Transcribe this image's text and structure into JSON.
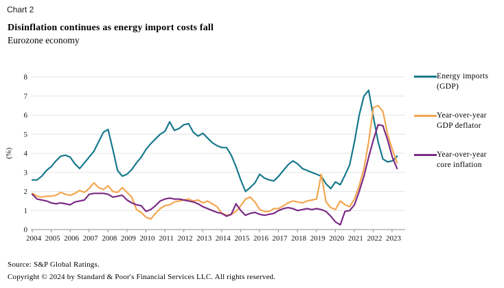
{
  "window": {
    "corner_label": "Chart 2"
  },
  "header": {
    "title": "Disinflation continues as energy import costs fall",
    "subtitle": "Eurozone economy"
  },
  "footer": {
    "source": "Source: S&P Global Ratings.",
    "copyright": "Copyright © 2024 by Standard & Poor's Financial Services LLC. All rights reserved."
  },
  "colors": {
    "energy_imports": "#16788C",
    "gdp_deflator": "#F4A64F",
    "core_inflation": "#7B2A85",
    "gridline": "#E4E4E4",
    "axis": "#8C8C8C"
  },
  "chart_data": {
    "type": "line",
    "title": "Disinflation continues as energy import costs fall",
    "subtitle": "Eurozone economy",
    "xlabel": "",
    "ylabel": "(%)",
    "ylim": [
      0,
      8
    ],
    "yticks": [
      0,
      1,
      2,
      3,
      4,
      5,
      6,
      7,
      8
    ],
    "grid": "horizontal",
    "legend_position": "right",
    "x_start_year": 2004,
    "points_per_year": 4,
    "x_tick_labels": [
      "2004",
      "2005",
      "2006",
      "2007",
      "2008",
      "2009",
      "2010",
      "2011",
      "2012",
      "2013",
      "2014",
      "2015",
      "2016",
      "2017",
      "2018",
      "2019",
      "2020",
      "2021",
      "2022",
      "2023"
    ],
    "series": [
      {
        "id": "energy-imports",
        "name": "Energy imports (GDP)",
        "legend_lines": [
          "Energy imports",
          "(GDP)"
        ],
        "color": "#16788C",
        "values": [
          2.6,
          2.6,
          2.8,
          3.1,
          3.3,
          3.6,
          3.85,
          3.9,
          3.8,
          3.45,
          3.2,
          3.5,
          3.8,
          4.1,
          4.6,
          5.1,
          5.25,
          4.2,
          3.1,
          2.8,
          2.9,
          3.15,
          3.5,
          3.8,
          4.2,
          4.5,
          4.75,
          5.0,
          5.15,
          5.65,
          5.2,
          5.3,
          5.5,
          5.55,
          5.1,
          4.9,
          5.05,
          4.8,
          4.55,
          4.4,
          4.3,
          4.3,
          3.9,
          3.3,
          2.6,
          2.0,
          2.2,
          2.45,
          2.9,
          2.7,
          2.6,
          2.55,
          2.8,
          3.1,
          3.4,
          3.6,
          3.45,
          3.2,
          3.1,
          3.0,
          2.9,
          2.8,
          2.4,
          2.15,
          2.5,
          2.35,
          2.85,
          3.4,
          4.6,
          6.0,
          7.0,
          7.3,
          5.9,
          4.6,
          3.7,
          3.55,
          3.6,
          3.85
        ]
      },
      {
        "id": "gdp-deflator",
        "name": "Year-over-year GDP deflator",
        "legend_lines": [
          "Year-over-year",
          "GDP deflator"
        ],
        "color": "#F4A64F",
        "values": [
          1.9,
          1.75,
          1.7,
          1.75,
          1.75,
          1.8,
          1.95,
          1.85,
          1.8,
          1.9,
          2.05,
          1.95,
          2.15,
          2.45,
          2.2,
          2.1,
          2.3,
          2.0,
          1.95,
          2.2,
          1.95,
          1.7,
          1.05,
          0.9,
          0.65,
          0.55,
          0.85,
          1.1,
          1.25,
          1.3,
          1.45,
          1.5,
          1.55,
          1.6,
          1.5,
          1.55,
          1.4,
          1.5,
          1.35,
          1.2,
          0.85,
          0.75,
          0.8,
          0.95,
          1.25,
          1.6,
          1.7,
          1.45,
          1.05,
          0.95,
          0.95,
          1.1,
          1.1,
          1.25,
          1.4,
          1.5,
          1.45,
          1.4,
          1.5,
          1.55,
          1.6,
          2.9,
          1.45,
          1.15,
          1.05,
          1.5,
          1.3,
          1.2,
          1.6,
          2.3,
          3.2,
          4.6,
          6.4,
          6.5,
          6.2,
          5.0,
          4.2,
          3.5
        ]
      },
      {
        "id": "core-inflation",
        "name": "Year-over-year core inflation",
        "legend_lines": [
          "Year-over-year",
          "core inflation"
        ],
        "color": "#7B2A85",
        "values": [
          1.85,
          1.6,
          1.55,
          1.5,
          1.4,
          1.35,
          1.4,
          1.35,
          1.3,
          1.45,
          1.5,
          1.55,
          1.85,
          1.9,
          1.9,
          1.9,
          1.85,
          1.7,
          1.75,
          1.8,
          1.55,
          1.4,
          1.3,
          1.25,
          0.95,
          1.05,
          1.25,
          1.5,
          1.6,
          1.65,
          1.6,
          1.6,
          1.55,
          1.5,
          1.45,
          1.35,
          1.2,
          1.1,
          1.0,
          0.9,
          0.85,
          0.7,
          0.8,
          1.35,
          1.0,
          0.75,
          0.85,
          0.9,
          0.8,
          0.75,
          0.8,
          0.85,
          1.0,
          1.1,
          1.15,
          1.1,
          1.0,
          1.05,
          1.1,
          1.05,
          1.1,
          1.05,
          0.95,
          0.7,
          0.4,
          0.25,
          0.95,
          1.0,
          1.3,
          2.0,
          2.8,
          3.8,
          4.7,
          5.5,
          5.45,
          4.7,
          3.8,
          3.2
        ]
      }
    ]
  }
}
